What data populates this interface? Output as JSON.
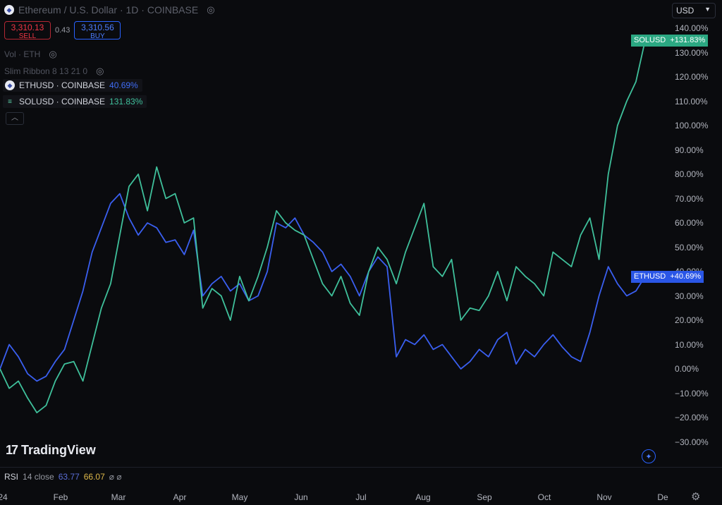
{
  "header": {
    "title": "Ethereum / U.S. Dollar · 1D · COINBASE",
    "sell_price": "3,310.13",
    "sell_label": "SELL",
    "spread": "0.43",
    "buy_price": "3,310.56",
    "buy_label": "BUY",
    "vol_label": "Vol · ETH",
    "ribbon_label": "Slim Ribbon 8 13 21 0",
    "collapse_icon": "chevron-up"
  },
  "compare": [
    {
      "symbol": "ETHUSD · COINBASE",
      "pct": "40.69%"
    },
    {
      "symbol": "SOLUSD · COINBASE",
      "pct": "131.83%"
    }
  ],
  "currency": "USD",
  "price_tags": {
    "sol_name": "SOLUSD",
    "sol_value": "+131.83%",
    "eth_name": "ETHUSD",
    "eth_value": "+40.69%"
  },
  "colors": {
    "eth": "#3a5ff0",
    "sol": "#3fc09b",
    "background": "#0a0b0e"
  },
  "branding": "TradingView",
  "rsi": {
    "label": "RSI",
    "params": "14 close",
    "value1": "63.77",
    "value2": "66.07"
  },
  "chart_data": {
    "type": "line",
    "y_unit": "%",
    "ylim": [
      -30,
      140
    ],
    "y_ticks": [
      "140.00%",
      "130.00%",
      "120.00%",
      "110.00%",
      "100.00%",
      "90.00%",
      "80.00%",
      "70.00%",
      "60.00%",
      "50.00%",
      "40.00%",
      "30.00%",
      "20.00%",
      "10.00%",
      "0.00%",
      "−10.00%",
      "−20.00%",
      "−30.00%"
    ],
    "x_ticks": [
      "24",
      "Feb",
      "Mar",
      "Apr",
      "May",
      "Jun",
      "Jul",
      "Aug",
      "Sep",
      "Oct",
      "Nov",
      "De"
    ],
    "x": [
      "Jan 1",
      "Jan 8",
      "Jan 13",
      "Jan 18",
      "Jan 24",
      "Jan 29",
      "Feb 3",
      "Feb 8",
      "Feb 13",
      "Feb 18",
      "Feb 23",
      "Feb 28",
      "Mar 4",
      "Mar 9",
      "Mar 13",
      "Mar 17",
      "Mar 21",
      "Mar 26",
      "Mar 31",
      "Apr 5",
      "Apr 10",
      "Apr 15",
      "Apr 20",
      "Apr 25",
      "Apr 30",
      "May 5",
      "May 10",
      "May 15",
      "May 20",
      "May 24",
      "May 28",
      "Jun 2",
      "Jun 7",
      "Jun 12",
      "Jun 17",
      "Jun 22",
      "Jun 27",
      "Jul 2",
      "Jul 7",
      "Jul 12",
      "Jul 17",
      "Jul 22",
      "Jul 27",
      "Aug 1",
      "Aug 5",
      "Aug 10",
      "Aug 15",
      "Aug 20",
      "Aug 25",
      "Aug 30",
      "Sep 4",
      "Sep 9",
      "Sep 14",
      "Sep 19",
      "Sep 24",
      "Sep 29",
      "Oct 4",
      "Oct 9",
      "Oct 14",
      "Oct 19",
      "Oct 24",
      "Oct 29",
      "Nov 3",
      "Nov 7",
      "Nov 10",
      "Nov 12",
      "Nov 15",
      "Nov 18",
      "Nov 21",
      "Nov 23",
      "Nov 24"
    ],
    "series": [
      {
        "name": "ETHUSD",
        "color": "#3a5ff0",
        "values": [
          0,
          10,
          5,
          -2,
          -5,
          -3,
          3,
          8,
          20,
          32,
          48,
          58,
          68,
          72,
          62,
          55,
          60,
          58,
          52,
          53,
          47,
          57,
          30,
          35,
          38,
          32,
          35,
          28,
          30,
          40,
          60,
          58,
          62,
          55,
          52,
          48,
          40,
          43,
          38,
          30,
          40,
          46,
          42,
          5,
          12,
          10,
          14,
          8,
          10,
          5,
          0,
          3,
          8,
          5,
          12,
          15,
          2,
          8,
          5,
          10,
          14,
          9,
          5,
          3,
          15,
          30,
          42,
          35,
          30,
          32,
          38
        ]
      },
      {
        "name": "SOLUSD",
        "color": "#3fc09b",
        "values": [
          0,
          -8,
          -5,
          -12,
          -18,
          -15,
          -5,
          2,
          3,
          -5,
          10,
          25,
          35,
          55,
          75,
          80,
          65,
          83,
          70,
          72,
          60,
          62,
          25,
          33,
          30,
          20,
          38,
          28,
          38,
          50,
          65,
          60,
          57,
          55,
          45,
          35,
          30,
          38,
          27,
          22,
          40,
          50,
          45,
          35,
          48,
          58,
          68,
          42,
          38,
          45,
          20,
          25,
          24,
          30,
          40,
          28,
          42,
          38,
          35,
          30,
          48,
          45,
          42,
          55,
          62,
          45,
          80,
          100,
          110,
          118,
          135
        ]
      }
    ]
  }
}
